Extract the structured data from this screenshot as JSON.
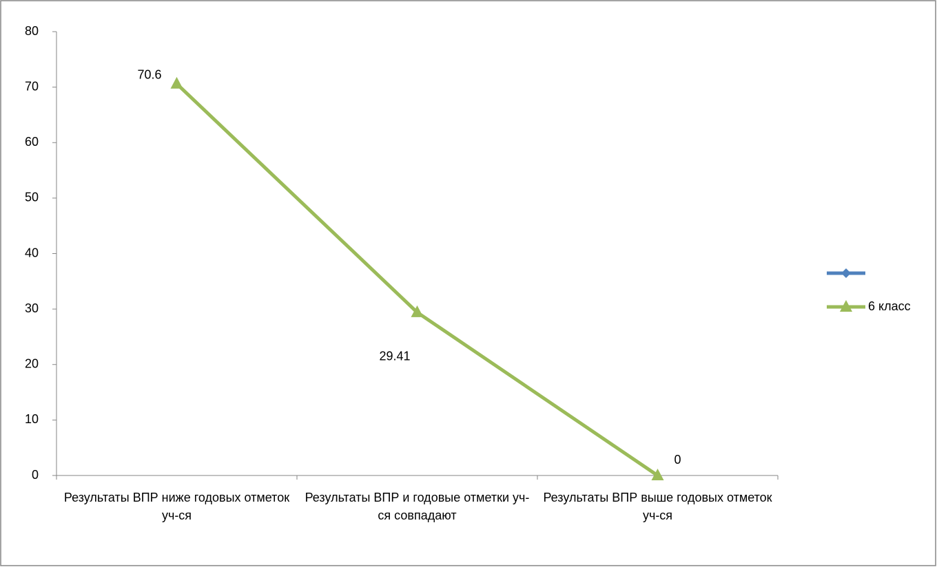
{
  "chart_data": {
    "type": "line",
    "categories": [
      "Результаты ВПР ниже годовых отметок уч-ся",
      "Результаты ВПР и годовые отметки уч-ся совпадают",
      "Результаты ВПР выше годовых отметок уч-ся"
    ],
    "series": [
      {
        "name": null,
        "color": "#4f81bd",
        "marker": "diamond",
        "values": [
          null,
          null,
          null
        ]
      },
      {
        "name": "6 класс",
        "color": "#9bbb59",
        "marker": "triangle",
        "values": [
          70.6,
          29.41,
          0
        ]
      }
    ],
    "ylim": [
      0,
      80
    ],
    "yticks": [
      0,
      10,
      20,
      30,
      40,
      50,
      60,
      70,
      80
    ],
    "grid": false,
    "legend": "right"
  }
}
